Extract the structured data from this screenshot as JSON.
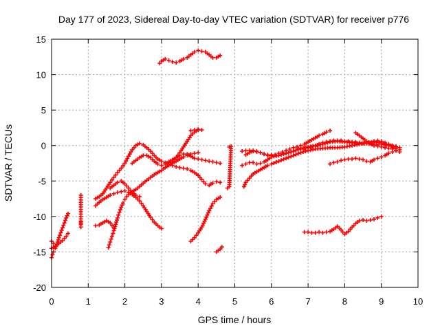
{
  "chart_data": {
    "type": "scatter",
    "title": "Day 177 of 2023, Sidereal Day-to-day VTEC variation (SDTVAR) for receiver p776",
    "xlabel": "GPS time / hours",
    "ylabel": "SDTVAR / TECUs",
    "xlim": [
      0,
      10
    ],
    "ylim": [
      -20,
      15
    ],
    "xticks": [
      0,
      1,
      2,
      3,
      4,
      5,
      6,
      7,
      8,
      9,
      10
    ],
    "yticks": [
      -20,
      -15,
      -10,
      -5,
      0,
      5,
      10,
      15
    ],
    "grid": true,
    "marker": "plus",
    "color": "#ff0000",
    "series": [
      {
        "name": "s1",
        "x": [
          0.0,
          0.05,
          0.1,
          0.15,
          0.2,
          0.25,
          0.3,
          0.35,
          0.4,
          0.45
        ],
        "y": [
          -15.8,
          -15.0,
          -14.5,
          -13.9,
          -13.0,
          -12.3,
          -11.6,
          -10.9,
          -10.2,
          -9.6
        ]
      },
      {
        "name": "s2",
        "x": [
          0.0,
          0.1,
          0.2,
          0.3,
          0.4,
          0.45
        ],
        "y": [
          -14.5,
          -14.2,
          -13.8,
          -13.4,
          -12.8,
          -12.4
        ]
      },
      {
        "name": "s3",
        "x": [
          0.0,
          0.05,
          0.1
        ],
        "y": [
          -13.5,
          -13.8,
          -14.2
        ]
      },
      {
        "name": "s4",
        "x": [
          0.8,
          0.8,
          0.8,
          0.8,
          0.8
        ],
        "y": [
          -7.0,
          -9.0,
          -11.0,
          -11.5,
          -10.8
        ]
      },
      {
        "name": "s5",
        "x": [
          1.2,
          1.3,
          1.4,
          1.5,
          1.6,
          1.7,
          1.8,
          1.9,
          2.0,
          2.1,
          2.2,
          2.3,
          2.4,
          2.5,
          2.6,
          2.7,
          2.8,
          2.9,
          3.0,
          3.1,
          3.2,
          3.3,
          3.4,
          3.5,
          3.6,
          3.7,
          3.8,
          3.9,
          4.0
        ],
        "y": [
          -7.5,
          -7.2,
          -6.8,
          -6.0,
          -5.2,
          -4.5,
          -3.8,
          -3.2,
          -2.5,
          -1.5,
          -0.6,
          0.0,
          0.3,
          0.1,
          -0.3,
          -0.8,
          -1.4,
          -1.9,
          -2.2,
          -2.4,
          -2.6,
          -2.8,
          -3.0,
          -3.1,
          -3.2,
          -3.3,
          -3.5,
          -3.8,
          -4.2
        ]
      },
      {
        "name": "s6",
        "x": [
          4.0,
          4.1,
          4.2,
          4.3,
          4.4,
          4.5,
          4.6
        ],
        "y": [
          -4.2,
          -4.8,
          -5.4,
          -5.6,
          -5.3,
          -5.1,
          -5.2
        ]
      },
      {
        "name": "s7",
        "x": [
          1.2,
          1.3,
          1.4,
          1.5,
          1.6,
          1.7,
          1.8,
          1.9,
          2.0,
          2.1,
          2.2,
          2.3,
          2.4,
          2.5,
          2.6,
          2.7,
          2.8,
          2.9,
          3.0
        ],
        "y": [
          -8.5,
          -8.0,
          -7.6,
          -7.3,
          -7.0,
          -6.8,
          -6.6,
          -6.5,
          -6.4,
          -6.6,
          -6.9,
          -7.3,
          -7.8,
          -8.5,
          -9.3,
          -10.1,
          -10.8,
          -11.3,
          -11.7
        ]
      },
      {
        "name": "s8",
        "x": [
          1.2,
          1.3,
          1.4,
          1.5,
          1.6,
          1.7
        ],
        "y": [
          -11.3,
          -11.2,
          -10.9,
          -10.6,
          -10.9,
          -11.6
        ]
      },
      {
        "name": "s9",
        "x": [
          1.55,
          1.6,
          1.65,
          1.7,
          1.75,
          1.8,
          1.85,
          1.9,
          1.95,
          2.0,
          2.05,
          2.1,
          2.2,
          2.3,
          2.4,
          2.5,
          2.6,
          2.7,
          2.8,
          2.9,
          3.0,
          3.1,
          3.2,
          3.3,
          3.4,
          3.5,
          3.6,
          3.7,
          3.8,
          3.9,
          4.0
        ],
        "y": [
          -14.4,
          -13.6,
          -12.8,
          -12.0,
          -11.1,
          -10.2,
          -9.4,
          -8.7,
          -8.1,
          -7.6,
          -7.2,
          -6.9,
          -6.5,
          -6.2,
          -5.8,
          -5.3,
          -4.9,
          -4.5,
          -4.1,
          -3.8,
          -3.5,
          -3.1,
          -2.8,
          -2.5,
          -2.2,
          -1.9,
          -1.6,
          -1.4,
          -1.2,
          -1.1,
          -1.0
        ]
      },
      {
        "name": "s10",
        "x": [
          3.2,
          3.3,
          3.4,
          3.5,
          3.6,
          3.7,
          3.8,
          3.9,
          4.0
        ],
        "y": [
          -2.6,
          -2.2,
          -1.7,
          -1.0,
          -0.2,
          0.6,
          1.4,
          1.9,
          2.2
        ]
      },
      {
        "name": "s11",
        "x": [
          3.8,
          3.9,
          4.0,
          4.1
        ],
        "y": [
          2.1,
          2.2,
          2.3,
          2.2
        ]
      },
      {
        "name": "s12",
        "x": [
          2.2,
          2.3,
          2.4,
          2.5,
          2.6,
          2.7,
          2.8,
          2.9,
          3.0,
          3.1,
          3.2,
          3.3,
          3.4,
          3.5,
          3.6,
          3.7,
          3.8,
          3.9,
          4.0,
          4.1,
          4.2,
          4.3,
          4.4,
          4.5,
          4.6
        ],
        "y": [
          -2.5,
          -2.1,
          -1.7,
          -1.4,
          -1.4,
          -1.7,
          -2.2,
          -2.6,
          -2.8,
          -2.6,
          -2.3,
          -2.0,
          -1.7,
          -1.4,
          -1.2,
          -1.2,
          -1.5,
          -1.8,
          -1.9,
          -2.0,
          -2.1,
          -2.2,
          -2.3,
          -2.4,
          -2.5
        ]
      },
      {
        "name": "s13",
        "x": [
          1.6,
          1.7,
          1.8,
          1.9,
          2.0,
          2.1,
          2.2,
          2.3,
          2.4
        ],
        "y": [
          -6.0,
          -5.6,
          -5.2,
          -5.0,
          -5.4,
          -6.0,
          -6.6,
          -7.0,
          -7.2
        ]
      },
      {
        "name": "s14",
        "x": [
          2.95,
          3.0,
          3.1,
          3.2,
          3.3,
          3.4,
          3.5,
          3.6,
          3.7,
          3.8,
          3.9,
          4.0,
          4.1,
          4.2,
          4.3,
          4.4,
          4.5,
          4.6
        ],
        "y": [
          11.6,
          11.9,
          12.2,
          12.0,
          11.8,
          11.7,
          11.9,
          12.2,
          12.4,
          12.8,
          13.2,
          13.4,
          13.3,
          13.2,
          12.8,
          12.4,
          12.4,
          12.7
        ]
      },
      {
        "name": "s15",
        "x": [
          3.8,
          3.9,
          4.0,
          4.1,
          4.2,
          4.3,
          4.4,
          4.5,
          4.6
        ],
        "y": [
          -13.5,
          -13.0,
          -12.3,
          -11.5,
          -10.4,
          -9.2,
          -8.2,
          -7.6,
          -7.3
        ]
      },
      {
        "name": "s16",
        "x": [
          4.5,
          4.55,
          4.6,
          4.65
        ],
        "y": [
          -15.0,
          -14.8,
          -14.6,
          -14.3
        ]
      },
      {
        "name": "s17",
        "x": [
          4.85,
          4.9,
          4.85,
          4.8
        ],
        "y": [
          -0.2,
          -0.1,
          -5.8,
          -6.0
        ]
      },
      {
        "name": "s18",
        "x": [
          5.2,
          5.3,
          5.4,
          5.5,
          5.6,
          5.7,
          5.8,
          5.9,
          6.0,
          6.1,
          6.2,
          6.3,
          6.4,
          6.5,
          6.6,
          6.7,
          6.8,
          6.9,
          7.0,
          7.1,
          7.2,
          7.3,
          7.4,
          7.5,
          7.6
        ],
        "y": [
          -0.8,
          -0.7,
          -0.7,
          -0.8,
          -0.9,
          -1.0,
          -1.2,
          -1.4,
          -1.4,
          -1.3,
          -1.1,
          -0.9,
          -0.7,
          -0.5,
          -0.3,
          -0.2,
          0.0,
          0.2,
          0.5,
          0.8,
          1.1,
          1.4,
          1.6,
          1.9,
          2.1
        ]
      },
      {
        "name": "s19",
        "x": [
          5.2,
          5.3,
          5.4,
          5.5,
          5.6,
          5.7,
          5.8,
          5.9,
          6.0,
          6.2,
          6.4,
          6.6,
          6.8,
          7.0,
          7.2,
          7.4,
          7.6,
          7.8,
          8.0,
          8.2,
          8.4,
          8.6,
          8.8,
          9.0,
          9.2,
          9.4
        ],
        "y": [
          -2.8,
          -2.6,
          -2.4,
          -2.4,
          -2.6,
          -2.5,
          -2.3,
          -2.0,
          -1.6,
          -1.4,
          -1.1,
          -0.8,
          -0.4,
          -0.2,
          0.0,
          0.2,
          0.5,
          0.6,
          0.5,
          0.4,
          0.3,
          0.3,
          0.2,
          0.2,
          0.0,
          -0.2
        ]
      },
      {
        "name": "s20",
        "x": [
          5.25,
          5.3,
          5.4,
          5.5,
          5.6,
          5.7,
          5.8,
          5.9,
          6.0,
          6.2,
          6.4,
          6.6,
          6.8,
          7.0,
          7.2,
          7.4,
          7.6,
          7.8,
          8.0,
          8.2,
          8.4,
          8.6,
          8.8,
          9.0,
          9.2,
          9.4
        ],
        "y": [
          -5.8,
          -5.2,
          -4.6,
          -4.0,
          -3.7,
          -3.4,
          -3.1,
          -2.8,
          -2.6,
          -2.2,
          -1.8,
          -1.4,
          -1.0,
          -0.7,
          -0.5,
          -0.4,
          -0.3,
          -0.3,
          -0.2,
          0.0,
          0.2,
          0.4,
          0.5,
          0.4,
          0.1,
          -0.4
        ]
      },
      {
        "name": "s21",
        "x": [
          5.3,
          5.4,
          5.5,
          5.6,
          5.7,
          5.8,
          5.9,
          6.0
        ],
        "y": [
          -1.3,
          -1.0,
          -0.7,
          -0.8,
          -1.0,
          -1.2,
          -1.3,
          -1.3
        ]
      },
      {
        "name": "s22",
        "x": [
          6.8,
          6.9,
          7.0,
          7.1,
          7.2,
          7.3,
          7.4,
          7.5,
          7.6,
          7.7,
          7.8,
          7.9,
          8.0,
          8.1,
          8.2,
          8.3,
          8.4,
          8.5,
          8.6,
          8.7,
          8.8,
          8.9,
          9.0,
          9.1,
          9.2,
          9.3,
          9.4,
          9.5
        ],
        "y": [
          -0.5,
          -0.4,
          -0.3,
          -0.2,
          -0.1,
          0.2,
          0.4,
          0.5,
          0.6,
          0.7,
          0.7,
          0.7,
          0.6,
          0.6,
          0.5,
          0.5,
          0.4,
          0.3,
          0.3,
          0.4,
          0.6,
          0.7,
          0.6,
          0.4,
          0.2,
          0.0,
          -0.1,
          -0.3
        ]
      },
      {
        "name": "s23",
        "x": [
          7.6,
          7.7,
          7.8,
          7.9,
          8.0,
          8.1,
          8.2,
          8.3,
          8.4,
          8.5,
          8.6,
          8.7,
          8.8,
          8.9,
          9.0,
          9.1,
          9.2,
          9.3,
          9.4,
          9.5
        ],
        "y": [
          -2.6,
          -2.4,
          -2.3,
          -2.1,
          -2.0,
          -1.9,
          -1.9,
          -1.8,
          -1.9,
          -2.0,
          -2.2,
          -2.3,
          -2.0,
          -1.8,
          -1.6,
          -1.4,
          -1.1,
          -0.9,
          -0.7,
          -0.6
        ]
      },
      {
        "name": "s24",
        "x": [
          8.3,
          8.4,
          8.5,
          8.6,
          8.7,
          8.8,
          8.9,
          9.0,
          9.1,
          9.2,
          9.3,
          9.4,
          9.5
        ],
        "y": [
          1.8,
          1.4,
          1.0,
          0.6,
          0.3,
          0.0,
          -0.1,
          -0.2,
          -0.3,
          -0.4,
          -0.5,
          -0.7,
          -0.9
        ]
      },
      {
        "name": "s25",
        "x": [
          6.9,
          7.0,
          7.1,
          7.2,
          7.3,
          7.4,
          7.5,
          7.6,
          7.7,
          7.8,
          7.9,
          8.0,
          8.1,
          8.2,
          8.3,
          8.4,
          8.5,
          8.6,
          8.7,
          8.8,
          8.9,
          9.0
        ],
        "y": [
          -12.2,
          -12.2,
          -12.3,
          -12.3,
          -12.2,
          -12.3,
          -12.2,
          -12.1,
          -11.8,
          -11.4,
          -11.9,
          -12.5,
          -12.1,
          -11.5,
          -11.0,
          -10.6,
          -10.5,
          -10.6,
          -10.5,
          -10.4,
          -10.2,
          -10.0
        ]
      }
    ]
  }
}
